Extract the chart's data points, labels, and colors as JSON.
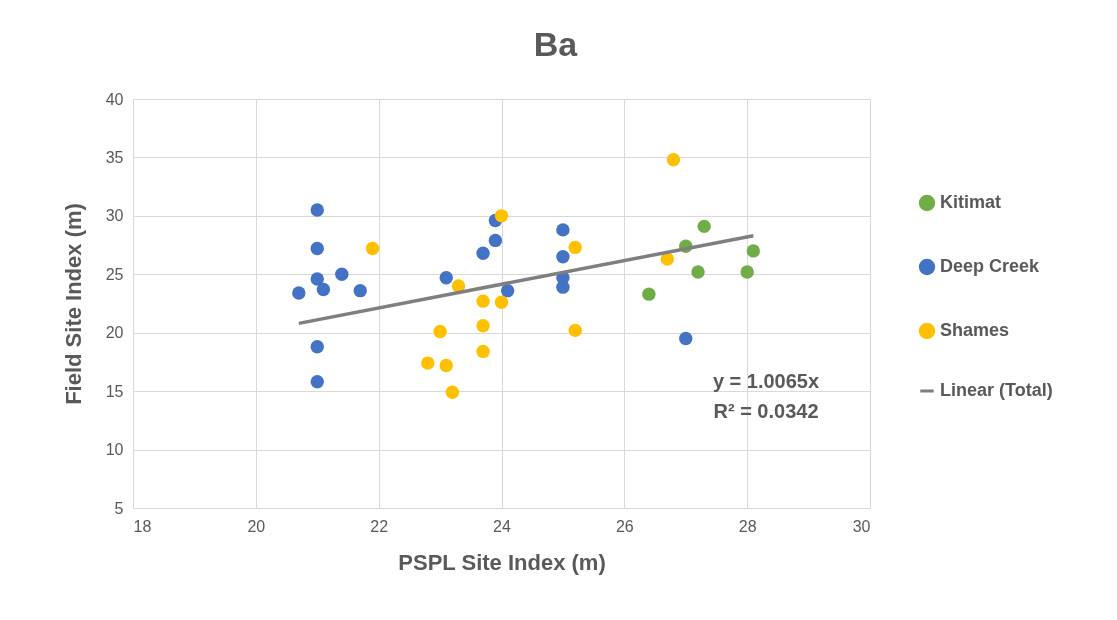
{
  "chart_data": {
    "type": "scatter",
    "title": "Ba",
    "xlabel": "PSPL Site Index (m)",
    "ylabel": "Field Site Index (m)",
    "xlim": [
      18,
      30
    ],
    "xticks": [
      18,
      20,
      22,
      24,
      26,
      28,
      30
    ],
    "ylim": [
      5,
      40
    ],
    "yticks": [
      5,
      10,
      15,
      20,
      25,
      30,
      35,
      40
    ],
    "grid": true,
    "legend": "right",
    "marker": "circle",
    "annotations": [
      "y = 1.0065x",
      "R² = 0.0342"
    ],
    "series": [
      {
        "name": "Kitimat",
        "color": "#70ad47",
        "x": [
          26.4,
          27,
          27.3,
          27.2,
          28,
          28.1
        ],
        "values": [
          23.3,
          27.4,
          29.1,
          25.2,
          25.2,
          27.0
        ]
      },
      {
        "name": "Deep Creek",
        "color": "#4472c4",
        "x": [
          20.7,
          21,
          21,
          21,
          21.1,
          21.4,
          21.7,
          21,
          21,
          23.1,
          23.7,
          23.9,
          23.9,
          24.1,
          25,
          25,
          25,
          25,
          27
        ],
        "values": [
          23.4,
          30.5,
          27.2,
          24.6,
          23.7,
          25.0,
          23.6,
          18.8,
          15.8,
          24.7,
          26.8,
          27.9,
          29.6,
          23.6,
          28.8,
          26.5,
          24.7,
          23.9,
          19.5
        ]
      },
      {
        "name": "Shames",
        "color": "#ffc000",
        "x": [
          21.9,
          23.3,
          24,
          23.7,
          24,
          23,
          23.7,
          23.7,
          22.8,
          23.1,
          23.2,
          25.2,
          25.2,
          26.8,
          26.7
        ],
        "values": [
          27.2,
          24.0,
          30.0,
          22.7,
          22.6,
          20.1,
          20.6,
          18.4,
          17.4,
          17.2,
          14.9,
          27.3,
          20.2,
          34.8,
          26.3
        ]
      },
      {
        "name": "Linear (Total)",
        "type": "line",
        "marker": "none",
        "color": "#7f7f7f",
        "line_style": "solid",
        "x": [
          20.7,
          28.1
        ],
        "values": [
          20.8,
          28.3
        ]
      }
    ]
  }
}
